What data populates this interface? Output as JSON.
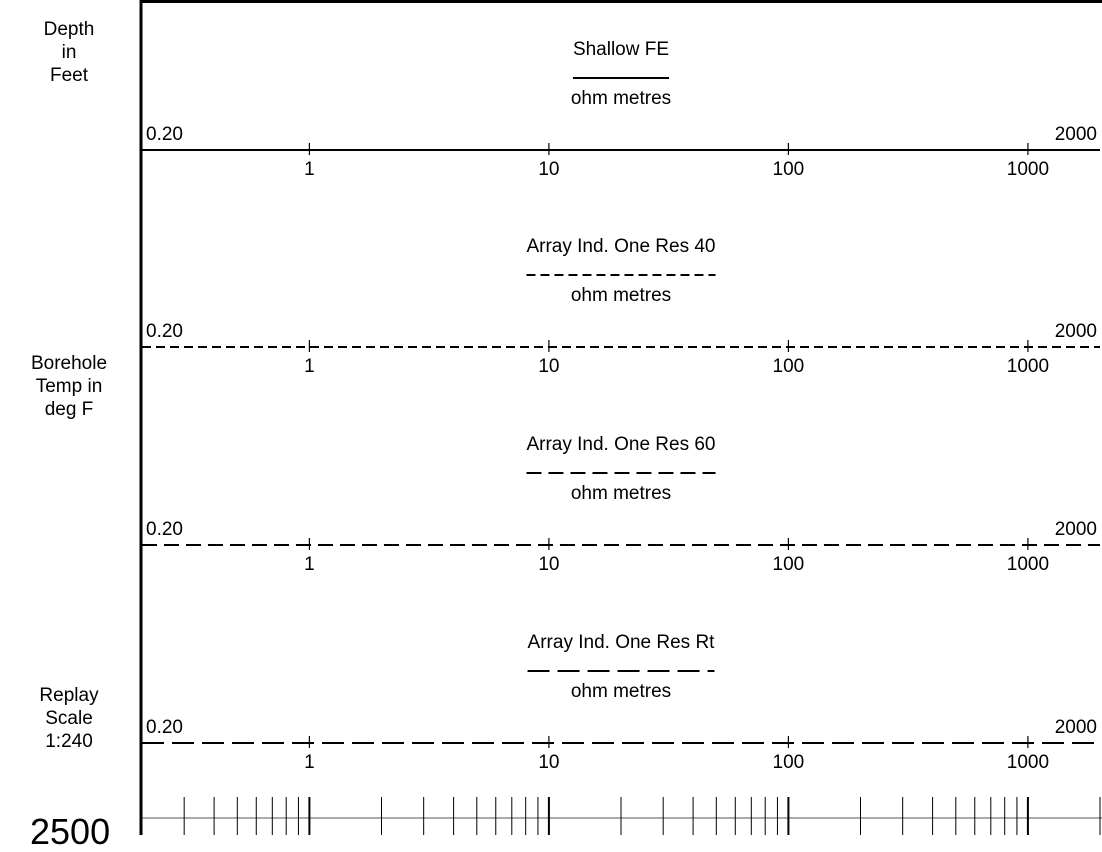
{
  "side_labels": {
    "depth": [
      "Depth",
      "in",
      "Feet"
    ],
    "temperature": [
      "Borehole",
      "Temp in",
      "deg F"
    ],
    "replay": [
      "Replay",
      "Scale",
      "1:240"
    ],
    "depth_reading": "2500"
  },
  "chart_data": {
    "type": "line",
    "scale": "logarithmic",
    "xlim": [
      0.2,
      2000
    ],
    "tick_labels": [
      "1",
      "10",
      "100",
      "1000"
    ],
    "tick_values": [
      1,
      10,
      100,
      1000
    ],
    "grid": true,
    "tracks": [
      {
        "name": "Shallow FE",
        "unit": "ohm metres",
        "min_label": "0.20",
        "max_label": "2000",
        "line_style": "solid"
      },
      {
        "name": "Array Ind. One Res 40",
        "unit": "ohm metres",
        "min_label": "0.20",
        "max_label": "2000",
        "line_style": "short-dash"
      },
      {
        "name": "Array Ind. One Res 60",
        "unit": "ohm metres",
        "min_label": "0.20",
        "max_label": "2000",
        "line_style": "medium-dash"
      },
      {
        "name": "Array Ind. One Res Rt",
        "unit": "ohm metres",
        "min_label": "0.20",
        "max_label": "2000",
        "line_style": "long-dash"
      }
    ]
  }
}
